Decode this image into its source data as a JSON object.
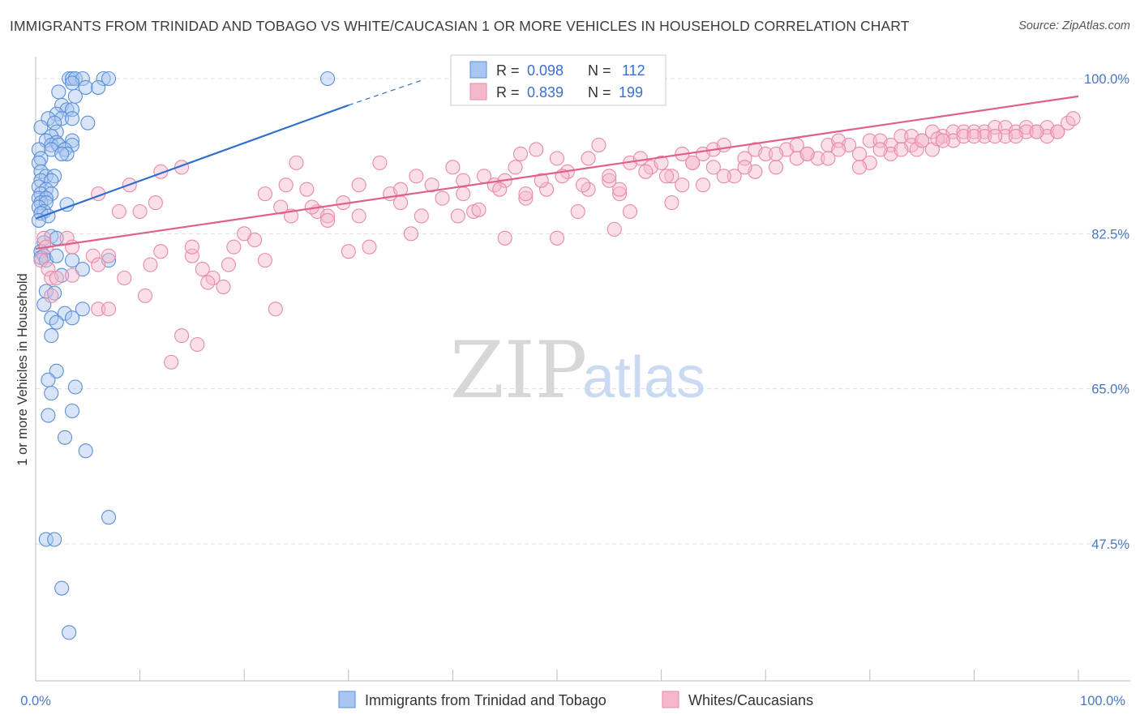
{
  "title": "IMMIGRANTS FROM TRINIDAD AND TOBAGO VS WHITE/CAUCASIAN 1 OR MORE VEHICLES IN HOUSEHOLD CORRELATION CHART",
  "source": "Source: ZipAtlas.com",
  "watermark": {
    "zip": "ZIP",
    "atlas": "atlas"
  },
  "colors": {
    "blue_fill": "#a9c6f0",
    "blue_stroke": "#5b8fd6",
    "blue_line": "#2f6fd0",
    "pink_fill": "#f5b8cb",
    "pink_stroke": "#e88aa8",
    "pink_line": "#e0608a",
    "grid": "#dddddd",
    "tick_text": "#4a76c2"
  },
  "legend": {
    "rows": [
      {
        "r_label": "R =",
        "r_value": "0.098",
        "n_label": "N =",
        "n_value": "112"
      },
      {
        "r_label": "R =",
        "r_value": "0.839",
        "n_label": "N =",
        "n_value": "199"
      }
    ]
  },
  "chart_data": {
    "type": "scatter",
    "xlabel": "",
    "ylabel": "1 or more Vehicles in Household",
    "xlim": [
      0,
      100
    ],
    "ylim": [
      34,
      102
    ],
    "x_tick_labels": [
      "0.0%",
      "100.0%"
    ],
    "y_ticks": [
      {
        "value": 100.0,
        "label": "100.0%"
      },
      {
        "value": 82.5,
        "label": "82.5%"
      },
      {
        "value": 65.0,
        "label": "65.0%"
      },
      {
        "value": 47.5,
        "label": "47.5%"
      }
    ],
    "grid": true,
    "series": [
      {
        "name": "Immigrants from Trinidad and Tobago",
        "color": "blue",
        "trend": {
          "x0": 0,
          "y0": 84.2,
          "x1": 30,
          "y1": 97.0,
          "dash_x1": 37,
          "dash_y1": 99.8
        },
        "points": [
          [
            3.2,
            100
          ],
          [
            3.5,
            100
          ],
          [
            3.8,
            100
          ],
          [
            4.5,
            100
          ],
          [
            6.5,
            100
          ],
          [
            7,
            100
          ],
          [
            28,
            100
          ],
          [
            3.5,
            99.5
          ],
          [
            4.8,
            99
          ],
          [
            6,
            99
          ],
          [
            2.2,
            98.5
          ],
          [
            3.8,
            98
          ],
          [
            2.5,
            97
          ],
          [
            3,
            96.5
          ],
          [
            3.5,
            96.5
          ],
          [
            2,
            96
          ],
          [
            1.2,
            95.5
          ],
          [
            2.5,
            95.5
          ],
          [
            3.5,
            95.5
          ],
          [
            1.8,
            95
          ],
          [
            5,
            95
          ],
          [
            0.5,
            94.5
          ],
          [
            2,
            94
          ],
          [
            1.5,
            93.5
          ],
          [
            3.5,
            93
          ],
          [
            1,
            93
          ],
          [
            2,
            92.8
          ],
          [
            1.5,
            92.5
          ],
          [
            2.2,
            92.5
          ],
          [
            3.5,
            92.5
          ],
          [
            0.3,
            92
          ],
          [
            1.5,
            92
          ],
          [
            2.8,
            92
          ],
          [
            3,
            91.5
          ],
          [
            0.5,
            91
          ],
          [
            2.5,
            91.5
          ],
          [
            0.3,
            90.5
          ],
          [
            0.5,
            89.5
          ],
          [
            1,
            89
          ],
          [
            1.8,
            89
          ],
          [
            0.5,
            88.5
          ],
          [
            1.5,
            88.5
          ],
          [
            0.3,
            87.8
          ],
          [
            1,
            87.5
          ],
          [
            0.5,
            87
          ],
          [
            1.5,
            87
          ],
          [
            0.3,
            86.5
          ],
          [
            1,
            86.5
          ],
          [
            0.5,
            86
          ],
          [
            1,
            86
          ],
          [
            3,
            85.8
          ],
          [
            0.3,
            85.5
          ],
          [
            0.8,
            85
          ],
          [
            0.5,
            84.8
          ],
          [
            1.2,
            84.5
          ],
          [
            0.3,
            84
          ],
          [
            1.5,
            82.2
          ],
          [
            2,
            82
          ],
          [
            0.8,
            81.5
          ],
          [
            0.5,
            80.5
          ],
          [
            0.8,
            80
          ],
          [
            0.5,
            79.8
          ],
          [
            1,
            79.5
          ],
          [
            2,
            80
          ],
          [
            3.5,
            79.5
          ],
          [
            7,
            79.5
          ],
          [
            4.5,
            78.5
          ],
          [
            2.5,
            77.8
          ],
          [
            1,
            76
          ],
          [
            1.8,
            75.8
          ],
          [
            4.5,
            74
          ],
          [
            0.8,
            74.5
          ],
          [
            2.8,
            73.5
          ],
          [
            1.5,
            73
          ],
          [
            3.5,
            73
          ],
          [
            2,
            72.5
          ],
          [
            1.5,
            71
          ],
          [
            2,
            67
          ],
          [
            1.2,
            66
          ],
          [
            1.5,
            64.5
          ],
          [
            3.8,
            65.2
          ],
          [
            3.5,
            62.5
          ],
          [
            1.2,
            62
          ],
          [
            2.8,
            59.5
          ],
          [
            4.8,
            58
          ],
          [
            7,
            50.5
          ],
          [
            1,
            48
          ],
          [
            1.8,
            48
          ],
          [
            2.5,
            42.5
          ],
          [
            3.2,
            37.5
          ]
        ]
      },
      {
        "name": "Whites/Caucasians",
        "color": "pink",
        "trend": {
          "x0": 0,
          "y0": 80.8,
          "x1": 100,
          "y1": 98.0
        },
        "points": [
          [
            0.8,
            82
          ],
          [
            1,
            81
          ],
          [
            3,
            82
          ],
          [
            3.5,
            81
          ],
          [
            5.5,
            80
          ],
          [
            6,
            79
          ],
          [
            7,
            80
          ],
          [
            0.5,
            79.5
          ],
          [
            1.2,
            78.5
          ],
          [
            1.5,
            77.5
          ],
          [
            2,
            77.5
          ],
          [
            3.5,
            77.8
          ],
          [
            1.5,
            75.5
          ],
          [
            6,
            74
          ],
          [
            7,
            74
          ],
          [
            8.5,
            77.5
          ],
          [
            10.5,
            75.5
          ],
          [
            11,
            79
          ],
          [
            12,
            80.5
          ],
          [
            11.5,
            86
          ],
          [
            10,
            85
          ],
          [
            8,
            85
          ],
          [
            6,
            87
          ],
          [
            9,
            88
          ],
          [
            12,
            89.5
          ],
          [
            14,
            90
          ],
          [
            15,
            80
          ],
          [
            16,
            78.5
          ],
          [
            17,
            77.5
          ],
          [
            18,
            76.5
          ],
          [
            15,
            81
          ],
          [
            14,
            71
          ],
          [
            13,
            68
          ],
          [
            15.5,
            70
          ],
          [
            16.5,
            77
          ],
          [
            18.5,
            79
          ],
          [
            19,
            81
          ],
          [
            20,
            82.5
          ],
          [
            21,
            81.8
          ],
          [
            22,
            79.5
          ],
          [
            23,
            74
          ],
          [
            22,
            87
          ],
          [
            24,
            88
          ],
          [
            25,
            90.5
          ],
          [
            26,
            87.5
          ],
          [
            27,
            85
          ],
          [
            28,
            84.5
          ],
          [
            30,
            80.5
          ],
          [
            31,
            88
          ],
          [
            32,
            81
          ],
          [
            33,
            90.5
          ],
          [
            34,
            87
          ],
          [
            35,
            86
          ],
          [
            36,
            82.5
          ],
          [
            37,
            84.5
          ],
          [
            38,
            88
          ],
          [
            39,
            86.5
          ],
          [
            40,
            90
          ],
          [
            41,
            88.5
          ],
          [
            42,
            85
          ],
          [
            43,
            89
          ],
          [
            44,
            88
          ],
          [
            45,
            88.5
          ],
          [
            45,
            82
          ],
          [
            46,
            90
          ],
          [
            47,
            86.5
          ],
          [
            47,
            87
          ],
          [
            48,
            92
          ],
          [
            49,
            87.5
          ],
          [
            50,
            91
          ],
          [
            51,
            89.5
          ],
          [
            52,
            85
          ],
          [
            53,
            87.5
          ],
          [
            54,
            92.5
          ],
          [
            55,
            88.5
          ],
          [
            56,
            87
          ],
          [
            57,
            90.5
          ],
          [
            58,
            91
          ],
          [
            59,
            90
          ],
          [
            60,
            90.5
          ],
          [
            61,
            89
          ],
          [
            62,
            91.5
          ],
          [
            63,
            90.5
          ],
          [
            64,
            91.5
          ],
          [
            65,
            92
          ],
          [
            66,
            92.5
          ],
          [
            67,
            89
          ],
          [
            68,
            91
          ],
          [
            69,
            92
          ],
          [
            70,
            91.5
          ],
          [
            71,
            90
          ],
          [
            72,
            92
          ],
          [
            73,
            92.5
          ],
          [
            74,
            91.5
          ],
          [
            75,
            91
          ],
          [
            76,
            92.5
          ],
          [
            77,
            93
          ],
          [
            78,
            92.5
          ],
          [
            79,
            91.5
          ],
          [
            80,
            93
          ],
          [
            81,
            93
          ],
          [
            82,
            92.5
          ],
          [
            83,
            93.5
          ],
          [
            84,
            93.5
          ],
          [
            85,
            93
          ],
          [
            86,
            94
          ],
          [
            87,
            93.5
          ],
          [
            88,
            94
          ],
          [
            89,
            94
          ],
          [
            90,
            94
          ],
          [
            91,
            94
          ],
          [
            92,
            94.5
          ],
          [
            93,
            94.5
          ],
          [
            94,
            94
          ],
          [
            95,
            94.5
          ],
          [
            96,
            94
          ],
          [
            97,
            94.5
          ],
          [
            98,
            94
          ],
          [
            99,
            95
          ],
          [
            40.5,
            84.5
          ],
          [
            42.5,
            85.2
          ],
          [
            48.5,
            88.5
          ],
          [
            52.5,
            88
          ],
          [
            55.5,
            83
          ],
          [
            46.5,
            91.5
          ],
          [
            58.5,
            89.5
          ],
          [
            57,
            85
          ],
          [
            50,
            82
          ],
          [
            61,
            86
          ],
          [
            64,
            88
          ],
          [
            66,
            89
          ],
          [
            69,
            89.5
          ],
          [
            73,
            91
          ],
          [
            76,
            91
          ],
          [
            80,
            90.5
          ],
          [
            82,
            91.5
          ],
          [
            84,
            92.5
          ],
          [
            86,
            92
          ],
          [
            88,
            93
          ],
          [
            89,
            93.5
          ],
          [
            91,
            93.5
          ],
          [
            93,
            93.5
          ],
          [
            95,
            94
          ],
          [
            97,
            93.5
          ],
          [
            86.5,
            93.2
          ],
          [
            84.5,
            92
          ],
          [
            79,
            90
          ],
          [
            63,
            90.5
          ],
          [
            60.5,
            89
          ],
          [
            55,
            89
          ],
          [
            53,
            91
          ],
          [
            50.5,
            89
          ],
          [
            44.5,
            87.5
          ],
          [
            35,
            87.5
          ],
          [
            31,
            84.5
          ],
          [
            28,
            84
          ],
          [
            26.5,
            85.5
          ],
          [
            24.5,
            84.5
          ],
          [
            23.5,
            85.5
          ],
          [
            29.5,
            86
          ],
          [
            36.5,
            89
          ],
          [
            41,
            87
          ],
          [
            56,
            87.5
          ],
          [
            62,
            88
          ],
          [
            65,
            90
          ],
          [
            68,
            90
          ],
          [
            71,
            91.5
          ],
          [
            74,
            91.5
          ],
          [
            77,
            92
          ],
          [
            81,
            92
          ],
          [
            83,
            92
          ],
          [
            85,
            93
          ],
          [
            87,
            93
          ],
          [
            90,
            93.5
          ],
          [
            92,
            93.5
          ],
          [
            94,
            93.5
          ],
          [
            96,
            94
          ],
          [
            98,
            94
          ],
          [
            99.5,
            95.5
          ]
        ]
      }
    ]
  },
  "bottom_legend": [
    {
      "label": "Immigrants from Trinidad and Tobago",
      "color": "blue"
    },
    {
      "label": "Whites/Caucasians",
      "color": "pink"
    }
  ]
}
